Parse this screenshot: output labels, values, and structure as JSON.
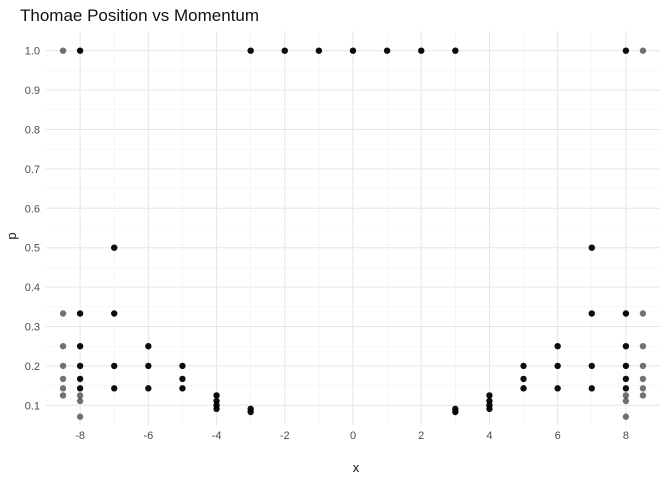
{
  "chart_data": {
    "type": "scatter",
    "title": "Thomae Position vs Momentum",
    "xlabel": "x",
    "ylabel": "p",
    "xlim": [
      -9,
      9
    ],
    "ylim": [
      0.05,
      1.05
    ],
    "x_ticks": [
      -8,
      -6,
      -4,
      -2,
      0,
      2,
      4,
      6,
      8
    ],
    "y_ticks": [
      0.1,
      0.2,
      0.3,
      0.4,
      0.5,
      0.6,
      0.7,
      0.8,
      0.9,
      1.0
    ],
    "x_tick_labels": [
      "-8",
      "-6",
      "-4",
      "-2",
      "0",
      "2",
      "4",
      "6",
      "8"
    ],
    "y_tick_labels": [
      "0.1",
      "0.2",
      "0.3",
      "0.4",
      "0.5",
      "0.6",
      "0.7",
      "0.8",
      "0.9",
      "1.0"
    ],
    "grid": true,
    "legend": "none",
    "point_color": "#000000",
    "series": [
      {
        "opacity": 0.55,
        "points": [
          [
            -8.5,
            1.0
          ],
          [
            -8.5,
            0.333
          ],
          [
            -8.5,
            0.25
          ],
          [
            -8.5,
            0.2
          ],
          [
            -8.5,
            0.167
          ],
          [
            -8.5,
            0.143
          ],
          [
            -8.5,
            0.125
          ],
          [
            -8,
            0.125
          ],
          [
            -8,
            0.111
          ],
          [
            -8,
            0.071
          ],
          [
            8,
            0.125
          ],
          [
            8,
            0.111
          ],
          [
            8,
            0.071
          ],
          [
            8.5,
            1.0
          ],
          [
            8.5,
            0.333
          ],
          [
            8.5,
            0.25
          ],
          [
            8.5,
            0.2
          ],
          [
            8.5,
            0.167
          ],
          [
            8.5,
            0.143
          ],
          [
            8.5,
            0.125
          ]
        ]
      },
      {
        "opacity": 0.95,
        "points": [
          [
            -8,
            1.0
          ],
          [
            -8,
            0.333
          ],
          [
            -8,
            0.25
          ],
          [
            -8,
            0.2
          ],
          [
            -8,
            0.167
          ],
          [
            -8,
            0.143
          ],
          [
            -7,
            0.5
          ],
          [
            -7,
            0.333
          ],
          [
            -7,
            0.2
          ],
          [
            -7,
            0.143
          ],
          [
            -6,
            0.25
          ],
          [
            -6,
            0.2
          ],
          [
            -6,
            0.143
          ],
          [
            -5,
            0.2
          ],
          [
            -5,
            0.167
          ],
          [
            -5,
            0.143
          ],
          [
            -4,
            0.125
          ],
          [
            -4,
            0.111
          ],
          [
            -4,
            0.1
          ],
          [
            -4,
            0.091
          ],
          [
            -3,
            1.0
          ],
          [
            -3,
            0.091
          ],
          [
            -3,
            0.083
          ],
          [
            -2,
            1.0
          ],
          [
            -1,
            1.0
          ],
          [
            0,
            1.0
          ],
          [
            1,
            1.0
          ],
          [
            2,
            1.0
          ],
          [
            3,
            1.0
          ],
          [
            3,
            0.091
          ],
          [
            3,
            0.083
          ],
          [
            4,
            0.125
          ],
          [
            4,
            0.111
          ],
          [
            4,
            0.1
          ],
          [
            4,
            0.091
          ],
          [
            5,
            0.2
          ],
          [
            5,
            0.167
          ],
          [
            5,
            0.143
          ],
          [
            6,
            0.25
          ],
          [
            6,
            0.2
          ],
          [
            6,
            0.143
          ],
          [
            7,
            0.5
          ],
          [
            7,
            0.333
          ],
          [
            7,
            0.2
          ],
          [
            7,
            0.143
          ],
          [
            8,
            1.0
          ],
          [
            8,
            0.333
          ],
          [
            8,
            0.25
          ],
          [
            8,
            0.2
          ],
          [
            8,
            0.167
          ],
          [
            8,
            0.143
          ]
        ]
      }
    ]
  }
}
